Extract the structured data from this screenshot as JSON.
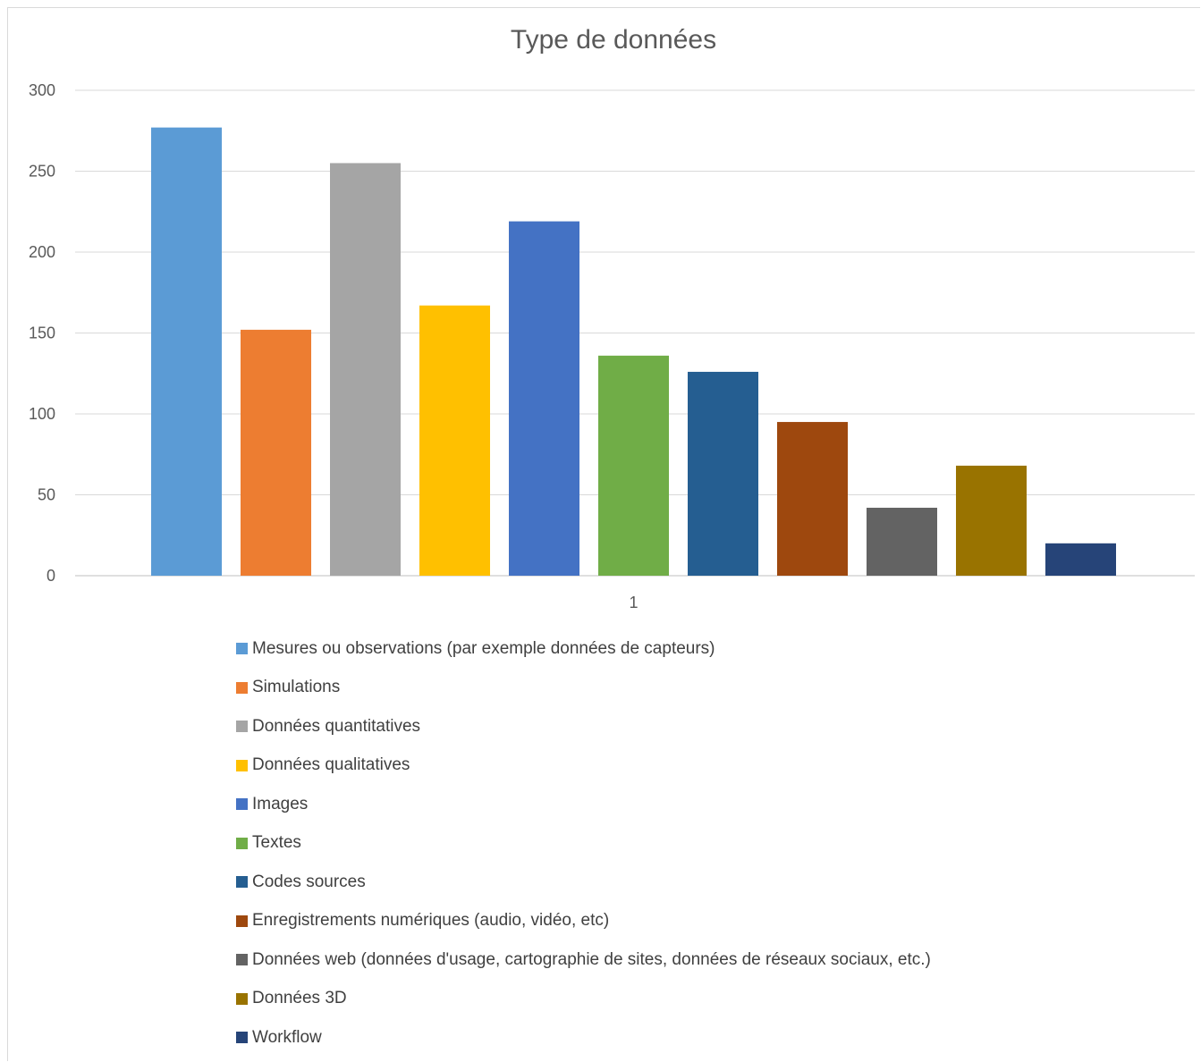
{
  "chart_data": {
    "type": "bar",
    "title": "Type de données",
    "xlabel": "",
    "ylabel": "",
    "categories": [
      "1"
    ],
    "ylim": [
      0,
      300
    ],
    "yticks": [
      0,
      50,
      100,
      150,
      200,
      250,
      300
    ],
    "grid": true,
    "legend_position": "bottom",
    "series": [
      {
        "name": "Mesures ou observations (par exemple données de capteurs)",
        "values": [
          277
        ],
        "color": "#5b9bd5"
      },
      {
        "name": "Simulations",
        "values": [
          152
        ],
        "color": "#ed7d31"
      },
      {
        "name": "Données quantitatives",
        "values": [
          255
        ],
        "color": "#a5a5a5"
      },
      {
        "name": "Données qualitatives",
        "values": [
          167
        ],
        "color": "#ffc000"
      },
      {
        "name": "Images",
        "values": [
          219
        ],
        "color": "#4472c4"
      },
      {
        "name": "Textes",
        "values": [
          136
        ],
        "color": "#70ad47"
      },
      {
        "name": "Codes sources",
        "values": [
          126
        ],
        "color": "#255e91"
      },
      {
        "name": "Enregistrements numériques (audio, vidéo, etc)",
        "values": [
          95
        ],
        "color": "#9e480e"
      },
      {
        "name": "Données web (données d'usage, cartographie de sites, données de réseaux sociaux, etc.)",
        "values": [
          42
        ],
        "color": "#636363"
      },
      {
        "name": "Données 3D",
        "values": [
          68
        ],
        "color": "#997300"
      },
      {
        "name": "Workflow",
        "values": [
          20
        ],
        "color": "#264478"
      }
    ]
  }
}
